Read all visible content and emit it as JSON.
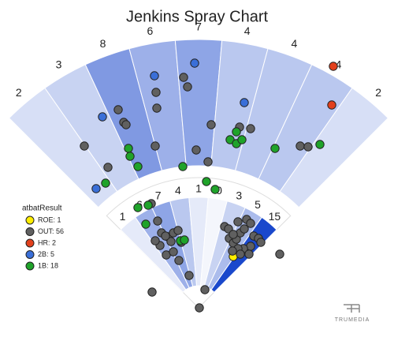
{
  "chart_data": {
    "type": "scatter",
    "title": "Jenkins Spray Chart",
    "outfield": {
      "values": [
        2,
        3,
        8,
        6,
        7,
        4,
        4,
        4,
        2
      ]
    },
    "infield": {
      "values": [
        1,
        6,
        7,
        4,
        1,
        0,
        3,
        5,
        15
      ]
    },
    "legend_title": "atbatResult",
    "xlim": [
      -252,
      248
    ],
    "ylim": [
      -42,
      390
    ],
    "series": [
      {
        "name": "ROE: 1",
        "color": "#ffee00",
        "x": [
          44
        ],
        "y": [
          65
        ]
      },
      {
        "name": "OUT: 56",
        "color": "#606060",
        "x": [
          -145,
          -115,
          -102,
          -95,
          -92,
          -54,
          -53,
          -19,
          -14,
          -55,
          16,
          52,
          66,
          129,
          139,
          12,
          -3,
          -60,
          -52,
          -47,
          -39,
          -32,
          -35,
          -41,
          -32,
          -49,
          -25,
          -12,
          -42,
          -55,
          -59,
          8,
          1,
          33,
          38,
          39,
          44,
          48,
          53,
          58,
          61,
          66,
          70,
          76,
          79,
          66,
          57,
          50,
          43,
          64,
          53,
          103,
          -22,
          -26,
          50,
          44
        ],
        "y": [
          205,
          178,
          251,
          235,
          232,
          273,
          253,
          292,
          280,
          205,
          232,
          229,
          227,
          205,
          204,
          185,
          200,
          132,
          110,
          95,
          90,
          95,
          84,
          67,
          71,
          79,
          60,
          41,
          91,
          85,
          20,
          23,
          0,
          103,
          100,
          88,
          82,
          87,
          95,
          100,
          112,
          107,
          91,
          88,
          83,
          78,
          75,
          75,
          72,
          68,
          68,
          68,
          83,
          98,
          109,
          93
        ]
      },
      {
        "name": "HR: 2",
        "color": "#e2401c",
        "x": [
          171,
          169
        ],
        "y": [
          306,
          257
        ]
      },
      {
        "name": "2B: 5",
        "color": "#3a6fd8",
        "x": [
          -56,
          -122,
          -130,
          58,
          -5
        ],
        "y": [
          294,
          242,
          151,
          260,
          310
        ]
      },
      {
        "name": "1B: 18",
        "color": "#1fa32a",
        "x": [
          -89,
          -87,
          -77,
          -118,
          -20,
          10,
          40,
          48,
          55,
          97,
          154,
          -67,
          -77,
          -23,
          -18,
          21,
          48,
          -64
        ],
        "y": [
          202,
          192,
          179,
          158,
          179,
          160,
          213,
          208,
          213,
          202,
          207,
          106,
          127,
          85,
          86,
          150,
          223,
          130
        ]
      }
    ],
    "brand": "TRUMEDIA"
  }
}
